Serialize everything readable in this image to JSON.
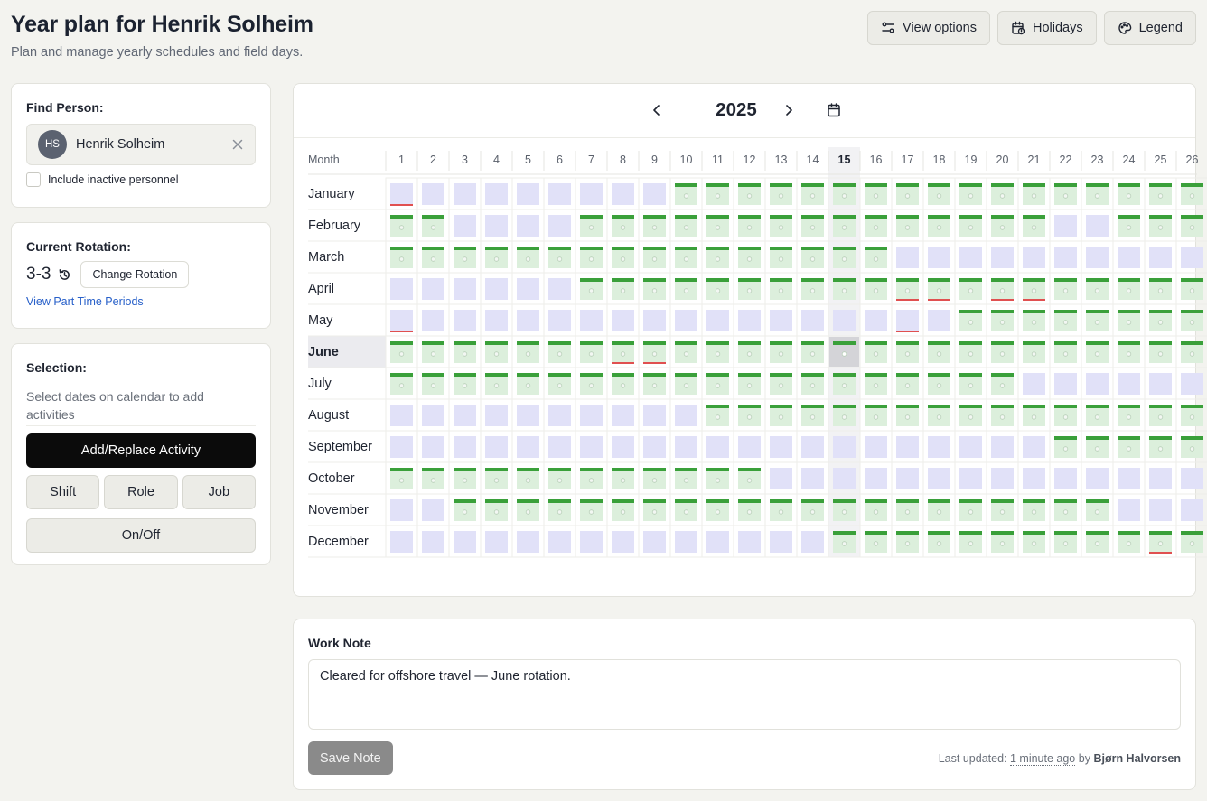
{
  "header": {
    "title": "Year plan for Henrik Solheim",
    "subtitle": "Plan and manage yearly schedules and field days.",
    "actions": [
      "View options",
      "Holidays",
      "Legend"
    ]
  },
  "find_person": {
    "label": "Find Person:",
    "initials": "HS",
    "name": "Henrik Solheim",
    "include_inactive_label": "Include inactive personnel",
    "include_inactive_checked": false
  },
  "rotation": {
    "label": "Current Rotation:",
    "value": "3-3",
    "change_button": "Change Rotation",
    "part_time_link": "View Part Time Periods"
  },
  "selection": {
    "label": "Selection:",
    "hint": "Select dates on calendar to add activities",
    "primary_button": "Add/Replace Activity",
    "buttons": [
      "Shift",
      "Role",
      "Job"
    ],
    "toggle_button": "On/Off"
  },
  "calendar": {
    "year": "2025",
    "month_header": "Month",
    "day_headers": [
      "1",
      "2",
      "3",
      "4",
      "5",
      "6",
      "7",
      "8",
      "9",
      "10",
      "11",
      "12",
      "13",
      "14",
      "15",
      "16",
      "17",
      "18",
      "19",
      "20",
      "21",
      "22",
      "23",
      "24",
      "25",
      "26"
    ],
    "highlight_day": "15",
    "current_month": "June",
    "selected_cell": {
      "month": "June",
      "day": 15
    },
    "legend_colors": {
      "off": "#e1e1f8",
      "work": "#dcefdc",
      "work_bar": "#3aa03a",
      "flag": "#e05050"
    },
    "months": [
      {
        "name": "January",
        "work_from": [
          10
        ],
        "work_days": [],
        "flags": [
          1
        ]
      },
      {
        "name": "February",
        "work_days": [
          1,
          2,
          7,
          8,
          9,
          10,
          11,
          12,
          13,
          14,
          15,
          16,
          17,
          18,
          19,
          20,
          21,
          24,
          25,
          26
        ],
        "flags": []
      },
      {
        "name": "March",
        "work_days": [
          1,
          2,
          3,
          4,
          5,
          6,
          7,
          8,
          9,
          10,
          11,
          12,
          13,
          14,
          15,
          16
        ],
        "flags": []
      },
      {
        "name": "April",
        "work_days": [
          7,
          8,
          9,
          10,
          11,
          12,
          13,
          14,
          15,
          16,
          17,
          18,
          19,
          20,
          21,
          22,
          23,
          24,
          25,
          26
        ],
        "flags": [
          17,
          18,
          20,
          21
        ]
      },
      {
        "name": "May",
        "work_days": [
          19,
          20,
          21,
          22,
          23,
          24,
          25,
          26
        ],
        "flags": [
          1,
          17
        ]
      },
      {
        "name": "June",
        "work_days": [
          1,
          2,
          3,
          4,
          5,
          6,
          7,
          8,
          9,
          10,
          11,
          12,
          13,
          14,
          15,
          16,
          17,
          18,
          19,
          20,
          21,
          22,
          23,
          24,
          25,
          26
        ],
        "flags": [
          8,
          9
        ]
      },
      {
        "name": "July",
        "work_days": [
          1,
          2,
          3,
          4,
          5,
          6,
          7,
          8,
          9,
          10,
          11,
          12,
          13,
          14,
          15,
          16,
          17,
          18,
          19,
          20
        ],
        "flags": []
      },
      {
        "name": "August",
        "work_days": [
          11,
          12,
          13,
          14,
          15,
          16,
          17,
          18,
          19,
          20,
          21,
          22,
          23,
          24,
          25,
          26
        ],
        "flags": []
      },
      {
        "name": "September",
        "work_days": [
          22,
          23,
          24,
          25,
          26
        ],
        "flags": []
      },
      {
        "name": "October",
        "work_days": [
          1,
          2,
          3,
          4,
          5,
          6,
          7,
          8,
          9,
          10,
          11,
          12
        ],
        "flags": []
      },
      {
        "name": "November",
        "work_days": [
          3,
          4,
          5,
          6,
          7,
          8,
          9,
          10,
          11,
          12,
          13,
          14,
          15,
          16,
          17,
          18,
          19,
          20,
          21,
          22,
          23
        ],
        "flags": []
      },
      {
        "name": "December",
        "work_days": [
          15,
          16,
          17,
          18,
          19,
          20,
          21,
          22,
          23,
          24,
          25,
          26
        ],
        "flags": [
          25
        ]
      }
    ]
  },
  "work_note": {
    "label": "Work Note",
    "text": "Cleared for offshore travel — June rotation.",
    "save_button": "Save Note",
    "updated_prefix": "Last updated:",
    "updated_ago": "1 minute ago",
    "updated_by_prefix": "by",
    "updated_by": "Bjørn Halvorsen"
  }
}
